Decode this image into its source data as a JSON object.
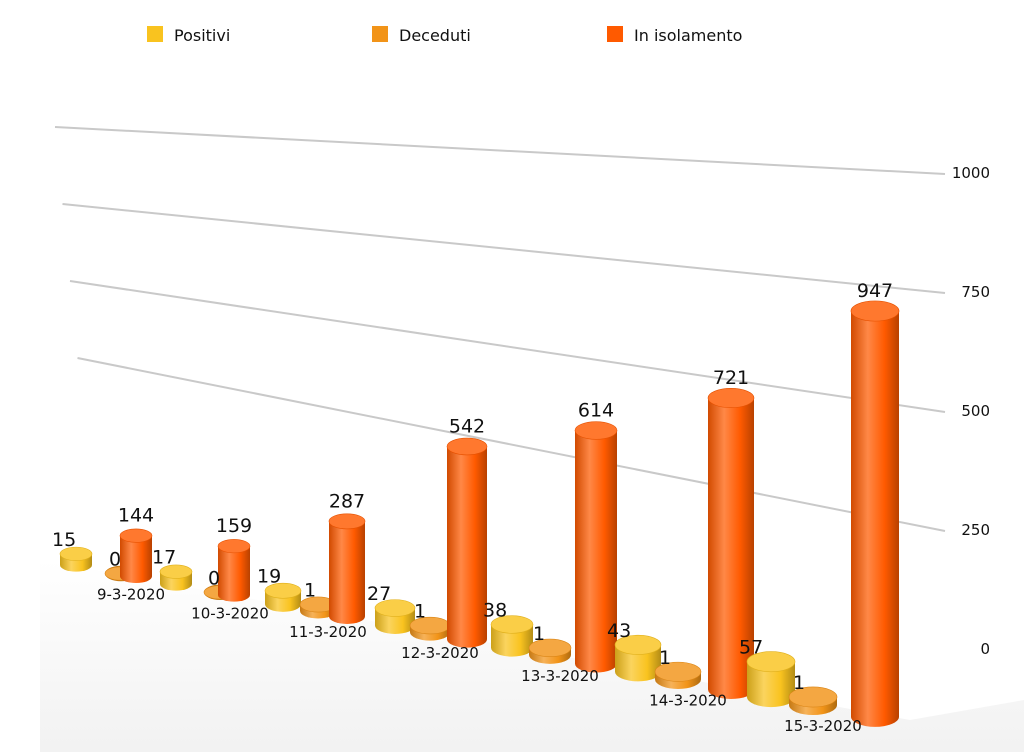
{
  "chart_data": {
    "type": "bar",
    "categories": [
      "9-3-2020",
      "10-3-2020",
      "11-3-2020",
      "12-3-2020",
      "13-3-2020",
      "14-3-2020",
      "15-3-2020"
    ],
    "series": [
      {
        "name": "Positivi",
        "color": "#F9C31F",
        "values": [
          15,
          17,
          19,
          27,
          38,
          43,
          57
        ]
      },
      {
        "name": "Deceduti",
        "color": "#F29418",
        "values": [
          0,
          0,
          1,
          1,
          1,
          1,
          1
        ]
      },
      {
        "name": "In isolamento",
        "color": "#FF5A00",
        "values": [
          144,
          159,
          287,
          542,
          614,
          721,
          947
        ]
      }
    ],
    "yticks": [
      0,
      250,
      500,
      750,
      1000
    ],
    "ylim": [
      0,
      1000
    ],
    "grid": true,
    "legend_position": "top",
    "style": "3d-cylinder"
  }
}
